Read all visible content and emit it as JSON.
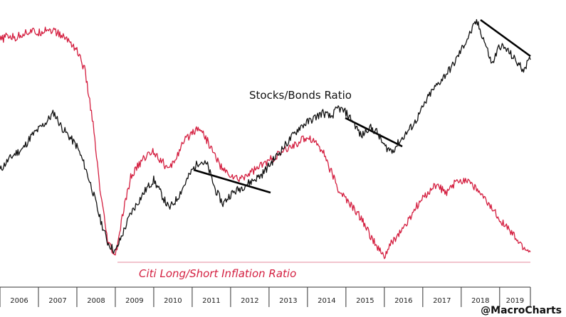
{
  "chart_data": {
    "type": "line",
    "title": "",
    "xlabel": "",
    "ylabel": "",
    "x_range": [
      2006,
      2019.8
    ],
    "y_range": [
      0,
      100
    ],
    "grid": false,
    "x_tick_labels": [
      "2006",
      "2007",
      "2008",
      "2009",
      "2010",
      "2011",
      "2012",
      "2013",
      "2014",
      "2015",
      "2016",
      "2017",
      "2018",
      "2019"
    ],
    "annotations": {
      "stocks_bonds": "Stocks/Bonds Ratio",
      "inflation": "Citi Long/Short Inflation Ratio",
      "credit": "@MacroCharts"
    },
    "colors": {
      "stocks_bonds": "#111111",
      "inflation": "#d41f40",
      "baseline": "#e58a9c",
      "trendline": "#000000"
    },
    "series": [
      {
        "name": "Stocks/Bonds Ratio",
        "color": "#111111",
        "x": [
          2006.0,
          2006.2,
          2006.4,
          2006.6,
          2006.8,
          2007.0,
          2007.2,
          2007.4,
          2007.6,
          2007.8,
          2008.0,
          2008.2,
          2008.4,
          2008.6,
          2008.8,
          2009.0,
          2009.2,
          2009.4,
          2009.6,
          2009.8,
          2010.0,
          2010.2,
          2010.4,
          2010.6,
          2010.8,
          2011.0,
          2011.2,
          2011.4,
          2011.6,
          2011.8,
          2012.0,
          2012.2,
          2012.4,
          2012.6,
          2012.8,
          2013.0,
          2013.2,
          2013.4,
          2013.6,
          2013.8,
          2014.0,
          2014.2,
          2014.4,
          2014.6,
          2014.8,
          2015.0,
          2015.2,
          2015.4,
          2015.6,
          2015.8,
          2016.0,
          2016.2,
          2016.4,
          2016.6,
          2016.8,
          2017.0,
          2017.2,
          2017.4,
          2017.6,
          2017.8,
          2018.0,
          2018.2,
          2018.4,
          2018.6,
          2018.8,
          2019.0,
          2019.2,
          2019.4,
          2019.6,
          2019.8
        ],
        "values": [
          38,
          42,
          45,
          47,
          52,
          55,
          58,
          62,
          56,
          52,
          48,
          40,
          30,
          18,
          8,
          4,
          12,
          20,
          25,
          30,
          34,
          28,
          22,
          26,
          32,
          38,
          42,
          40,
          30,
          24,
          28,
          30,
          32,
          34,
          36,
          40,
          44,
          48,
          52,
          56,
          58,
          60,
          62,
          60,
          64,
          62,
          58,
          52,
          56,
          54,
          48,
          46,
          50,
          54,
          58,
          64,
          70,
          74,
          78,
          82,
          88,
          94,
          100,
          92,
          82,
          90,
          88,
          84,
          80,
          84
        ]
      },
      {
        "name": "Citi Long/Short Inflation Ratio",
        "color": "#d41f40",
        "x": [
          2006.0,
          2006.2,
          2006.4,
          2006.6,
          2006.8,
          2007.0,
          2007.2,
          2007.4,
          2007.6,
          2007.8,
          2008.0,
          2008.2,
          2008.4,
          2008.6,
          2008.8,
          2009.0,
          2009.2,
          2009.4,
          2009.6,
          2009.8,
          2010.0,
          2010.2,
          2010.4,
          2010.6,
          2010.8,
          2011.0,
          2011.2,
          2011.4,
          2011.6,
          2011.8,
          2012.0,
          2012.2,
          2012.4,
          2012.6,
          2012.8,
          2013.0,
          2013.2,
          2013.4,
          2013.6,
          2013.8,
          2014.0,
          2014.2,
          2014.4,
          2014.6,
          2014.8,
          2015.0,
          2015.2,
          2015.4,
          2015.6,
          2015.8,
          2016.0,
          2016.2,
          2016.4,
          2016.6,
          2016.8,
          2017.0,
          2017.2,
          2017.4,
          2017.6,
          2017.8,
          2018.0,
          2018.2,
          2018.4,
          2018.6,
          2018.8,
          2019.0,
          2019.2,
          2019.4,
          2019.6,
          2019.8
        ],
        "values": [
          92,
          94,
          93,
          95,
          96,
          95,
          97,
          96,
          94,
          92,
          88,
          80,
          60,
          30,
          8,
          2,
          20,
          35,
          40,
          44,
          46,
          42,
          38,
          44,
          50,
          54,
          56,
          50,
          44,
          38,
          36,
          34,
          36,
          38,
          40,
          42,
          44,
          46,
          48,
          50,
          52,
          50,
          46,
          38,
          30,
          26,
          22,
          18,
          12,
          6,
          2,
          8,
          12,
          16,
          22,
          26,
          30,
          32,
          28,
          32,
          34,
          34,
          30,
          26,
          22,
          18,
          14,
          10,
          6,
          4
        ]
      }
    ]
  }
}
